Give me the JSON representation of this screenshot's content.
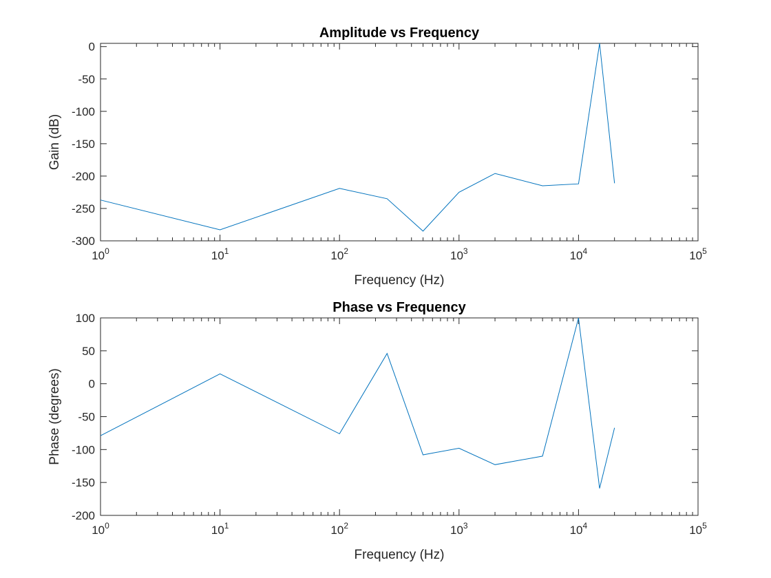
{
  "chart_data": [
    {
      "type": "line",
      "title": "Amplitude vs Frequency",
      "xlabel": "Frequency (Hz)",
      "ylabel": "Gain (dB)",
      "xscale": "log",
      "xlim": [
        1,
        100000
      ],
      "ylim": [
        -300,
        5
      ],
      "grid": false,
      "xticks": [
        {
          "base": "10",
          "exp": "0"
        },
        {
          "base": "10",
          "exp": "1"
        },
        {
          "base": "10",
          "exp": "2"
        },
        {
          "base": "10",
          "exp": "3"
        },
        {
          "base": "10",
          "exp": "4"
        },
        {
          "base": "10",
          "exp": "5"
        }
      ],
      "yticks": [
        "0",
        "-50",
        "-100",
        "-150",
        "-200",
        "-250",
        "-300"
      ],
      "line_color": "#0072BD",
      "series": [
        {
          "x": [
            1,
            10,
            100,
            250,
            500,
            1000,
            2000,
            5000,
            10000,
            15000,
            20000
          ],
          "y": [
            -237,
            -283,
            -219,
            -235,
            -285,
            -225,
            -196,
            -215,
            -212,
            5,
            -211
          ]
        }
      ]
    },
    {
      "type": "line",
      "title": "Phase vs Frequency",
      "xlabel": "Frequency (Hz)",
      "ylabel": "Phase (degrees)",
      "xscale": "log",
      "xlim": [
        1,
        100000
      ],
      "ylim": [
        -200,
        100
      ],
      "grid": false,
      "xticks": [
        {
          "base": "10",
          "exp": "0"
        },
        {
          "base": "10",
          "exp": "1"
        },
        {
          "base": "10",
          "exp": "2"
        },
        {
          "base": "10",
          "exp": "3"
        },
        {
          "base": "10",
          "exp": "4"
        },
        {
          "base": "10",
          "exp": "5"
        }
      ],
      "yticks": [
        "100",
        "50",
        "0",
        "-50",
        "-100",
        "-150",
        "-200"
      ],
      "line_color": "#0072BD",
      "series": [
        {
          "x": [
            1,
            10,
            100,
            250,
            500,
            1000,
            2000,
            5000,
            10000,
            15000,
            20000
          ],
          "y": [
            -79,
            15,
            -76,
            46,
            -108,
            -98,
            -123,
            -110,
            100,
            -159,
            -67
          ]
        }
      ]
    }
  ]
}
